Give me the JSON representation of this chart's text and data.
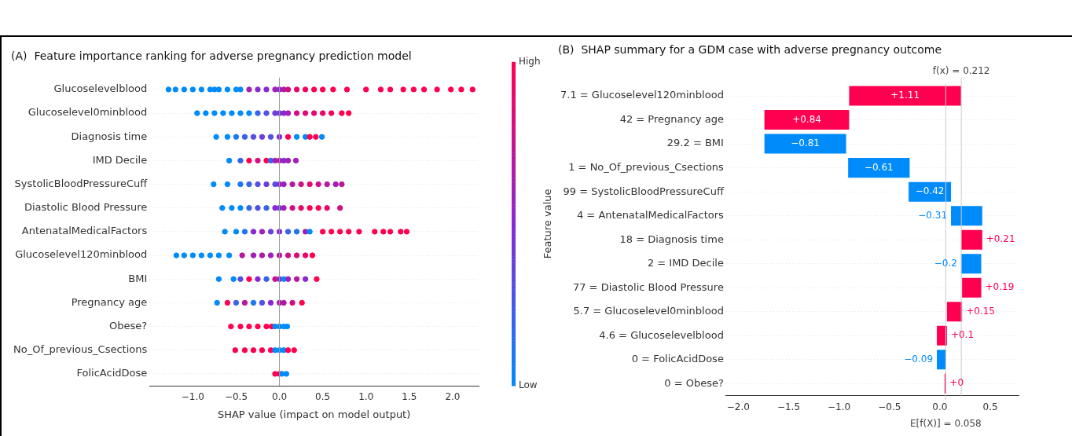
{
  "chart_data": [
    {
      "type": "scatter",
      "title": "(A)  Feature importance ranking for adverse pregnancy prediction model",
      "xlabel": "SHAP value (impact on model output)",
      "clabel": "Feature value",
      "orientation": "horizontal",
      "marker": "circle",
      "grid": "y",
      "categories": [
        "Glucoselevelblood",
        "Glucoselevel0minblood",
        "Diagnosis time",
        "IMD Decile",
        "SystolicBloodPressureCuff",
        "Diastolic Blood Pressure",
        "AntenatalMedicalFactors",
        "Glucoselevel120minblood",
        "BMI",
        "Pregnancy age",
        "Obese?",
        "No_Of_previous_Csections",
        "FolicAcidDose"
      ],
      "xlim": [
        -1.5,
        2.3
      ],
      "xticks": [
        {
          "value": -1,
          "label": "−1.0"
        },
        {
          "value": -0.5,
          "label": "−0.5"
        },
        {
          "value": 0,
          "label": "0.0"
        },
        {
          "value": 0.5,
          "label": "0.5"
        },
        {
          "value": 1,
          "label": "1.0"
        },
        {
          "value": 1.5,
          "label": "1.5"
        },
        {
          "value": 2,
          "label": "2.0"
        }
      ],
      "clim": [
        0,
        1
      ],
      "cticks": [
        {
          "value": 0,
          "label": "Low"
        },
        {
          "value": 1,
          "label": "High"
        }
      ],
      "ref_lines": [
        {
          "axis": "x",
          "value": 0,
          "label": null,
          "color": "#999999"
        }
      ],
      "series": [
        {
          "x": [
            "Glucoselevelblood",
            "Glucoselevelblood",
            "Glucoselevelblood",
            "Glucoselevelblood",
            "Glucoselevelblood",
            "Glucoselevelblood",
            "Glucoselevelblood",
            "Glucoselevelblood",
            "Glucoselevelblood",
            "Glucoselevelblood",
            "Glucoselevelblood",
            "Glucoselevelblood",
            "Glucoselevelblood",
            "Glucoselevelblood",
            "Glucoselevelblood",
            "Glucoselevelblood",
            "Glucoselevelblood",
            "Glucoselevelblood",
            "Glucoselevelblood",
            "Glucoselevelblood",
            "Glucoselevelblood",
            "Glucoselevelblood",
            "Glucoselevelblood",
            "Glucoselevelblood",
            "Glucoselevelblood",
            "Glucoselevelblood",
            "Glucoselevelblood",
            "Glucoselevelblood",
            "Glucoselevelblood",
            "Glucoselevelblood",
            "Glucoselevelblood",
            "Glucoselevelblood",
            "Glucoselevelblood",
            "Glucoselevelblood"
          ],
          "values": [
            -1.28,
            -1.2,
            -1.1,
            -1.0,
            -0.9,
            -0.8,
            -0.75,
            -0.7,
            -0.6,
            -0.5,
            -0.45,
            -0.35,
            -0.25,
            -0.15,
            -0.05,
            0,
            0.05,
            0.1,
            0.2,
            0.3,
            0.4,
            0.5,
            0.62,
            0.78,
            1.0,
            1.17,
            1.28,
            1.43,
            1.55,
            1.67,
            1.82,
            1.98,
            2.1,
            2.23
          ],
          "cvalues": [
            0,
            0,
            0,
            0,
            0,
            0,
            0,
            0,
            0,
            0,
            0,
            0.6,
            0.5,
            0.5,
            0.6,
            0.5,
            0.7,
            0.8,
            0.9,
            0.95,
            1,
            1,
            1,
            1,
            1,
            1,
            1,
            1,
            1,
            1,
            1,
            1,
            1,
            1
          ],
          "colors": [
            "#008bfb",
            "#008bfb",
            "#008bfb",
            "#008bfb",
            "#008bfb",
            "#008bfb",
            "#008bfb",
            "#008bfb",
            "#008bfb",
            "#008bfb",
            "#008bfb",
            "#a120b8",
            "#8a28d2",
            "#8a28d2",
            "#a120b8",
            "#8a28d2",
            "#b8189e",
            "#cf1085",
            "#e6086b",
            "#f2045e",
            "#ff0051",
            "#ff0051",
            "#ff0051",
            "#ff0051",
            "#ff0051",
            "#ff0051",
            "#ff0051",
            "#ff0051",
            "#ff0051",
            "#ff0051",
            "#ff0051",
            "#ff0051",
            "#ff0051",
            "#ff0051"
          ]
        },
        {
          "x": [
            "Glucoselevel0minblood",
            "Glucoselevel0minblood",
            "Glucoselevel0minblood",
            "Glucoselevel0minblood",
            "Glucoselevel0minblood",
            "Glucoselevel0minblood",
            "Glucoselevel0minblood",
            "Glucoselevel0minblood",
            "Glucoselevel0minblood",
            "Glucoselevel0minblood",
            "Glucoselevel0minblood",
            "Glucoselevel0minblood",
            "Glucoselevel0minblood",
            "Glucoselevel0minblood",
            "Glucoselevel0minblood",
            "Glucoselevel0minblood",
            "Glucoselevel0minblood",
            "Glucoselevel0minblood",
            "Glucoselevel0minblood",
            "Glucoselevel0minblood"
          ],
          "values": [
            -0.95,
            -0.85,
            -0.75,
            -0.65,
            -0.55,
            -0.45,
            -0.35,
            -0.25,
            -0.15,
            -0.05,
            0,
            0.05,
            0.1,
            0.2,
            0.3,
            0.4,
            0.5,
            0.6,
            0.72,
            0.8
          ],
          "cvalues": [
            0,
            0,
            0,
            0,
            0,
            0,
            0,
            0.2,
            0.3,
            0.4,
            0.4,
            0.5,
            0.6,
            0.8,
            0.85,
            0.9,
            0.9,
            0.95,
            1,
            1
          ],
          "colors": [
            "#008bfb",
            "#008bfb",
            "#008bfb",
            "#008bfb",
            "#008bfb",
            "#008bfb",
            "#008bfb",
            "#3764eb",
            "#5350e3",
            "#6e3cda",
            "#6e3cda",
            "#8a28d2",
            "#a120b8",
            "#cf1085",
            "#db0c78",
            "#e6086b",
            "#e6086b",
            "#f2045e",
            "#ff0051",
            "#ff0051"
          ]
        },
        {
          "x": [
            "Diagnosis time",
            "Diagnosis time",
            "Diagnosis time",
            "Diagnosis time",
            "Diagnosis time",
            "Diagnosis time",
            "Diagnosis time",
            "Diagnosis time",
            "Diagnosis time",
            "Diagnosis time",
            "Diagnosis time",
            "Diagnosis time",
            "Diagnosis time",
            "Diagnosis time",
            "Diagnosis time"
          ],
          "values": [
            -0.73,
            -0.6,
            -0.5,
            -0.4,
            -0.3,
            -0.2,
            -0.1,
            0,
            null,
            0.1,
            0.2,
            0.3,
            0.35,
            0.42,
            0.49
          ],
          "cvalues": [
            0,
            0,
            0.1,
            0.2,
            0.3,
            0.4,
            0.3,
            0.5,
            null,
            1,
            0,
            0,
            1,
            1,
            0
          ],
          "colors": [
            "#008bfb",
            "#008bfb",
            "#1c78f3",
            "#3764eb",
            "#5350e3",
            "#6e3cda",
            "#5350e3",
            "#8a28d2",
            null,
            "#ff0051",
            "#008bfb",
            "#008bfb",
            "#ff0051",
            "#ff0051",
            "#008bfb"
          ]
        },
        {
          "x": [
            "IMD Decile",
            "IMD Decile",
            "IMD Decile",
            "IMD Decile",
            "IMD Decile",
            "IMD Decile",
            "IMD Decile",
            "IMD Decile",
            "IMD Decile",
            "IMD Decile",
            "IMD Decile"
          ],
          "values": [
            -0.58,
            -0.45,
            -0.35,
            -0.25,
            -0.15,
            -0.1,
            -0.05,
            0,
            0.05,
            0.1,
            0.19
          ],
          "cvalues": [
            0,
            0.2,
            1,
            0.8,
            1,
            0.2,
            0.6,
            0.7,
            0.5,
            0.6,
            0.6
          ],
          "colors": [
            "#008bfb",
            "#3764eb",
            "#ff0051",
            "#cf1085",
            "#ff0051",
            "#3764eb",
            "#a120b8",
            "#b8189e",
            "#8a28d2",
            "#a120b8",
            "#a120b8"
          ]
        },
        {
          "x": [
            "SystolicBloodPressureCuff",
            "SystolicBloodPressureCuff",
            "SystolicBloodPressureCuff",
            "SystolicBloodPressureCuff",
            "SystolicBloodPressureCuff",
            "SystolicBloodPressureCuff",
            "SystolicBloodPressureCuff",
            "SystolicBloodPressureCuff",
            "SystolicBloodPressureCuff",
            "SystolicBloodPressureCuff",
            "SystolicBloodPressureCuff",
            "SystolicBloodPressureCuff",
            "SystolicBloodPressureCuff",
            "SystolicBloodPressureCuff",
            "SystolicBloodPressureCuff",
            "SystolicBloodPressureCuff"
          ],
          "values": [
            -0.76,
            -0.6,
            -0.45,
            -0.35,
            -0.25,
            -0.15,
            -0.05,
            0,
            0.05,
            0.15,
            0.25,
            0.35,
            0.45,
            0.55,
            0.65,
            0.72
          ],
          "cvalues": [
            0,
            0,
            0.1,
            0.2,
            0.3,
            0.4,
            0.3,
            0.5,
            0.6,
            0.7,
            0.8,
            0.9,
            0.8,
            0.7,
            0.6,
            0.7
          ],
          "colors": [
            "#008bfb",
            "#008bfb",
            "#1c78f3",
            "#3764eb",
            "#5350e3",
            "#6e3cda",
            "#5350e3",
            "#8a28d2",
            "#a120b8",
            "#b8189e",
            "#cf1085",
            "#e6086b",
            "#cf1085",
            "#b8189e",
            "#a120b8",
            "#b8189e"
          ]
        },
        {
          "x": [
            "Diastolic Blood Pressure",
            "Diastolic Blood Pressure",
            "Diastolic Blood Pressure",
            "Diastolic Blood Pressure",
            "Diastolic Blood Pressure",
            "Diastolic Blood Pressure",
            "Diastolic Blood Pressure",
            "Diastolic Blood Pressure",
            "Diastolic Blood Pressure",
            "Diastolic Blood Pressure",
            "Diastolic Blood Pressure",
            "Diastolic Blood Pressure",
            "Diastolic Blood Pressure",
            "Diastolic Blood Pressure",
            "Diastolic Blood Pressure"
          ],
          "values": [
            -0.66,
            -0.55,
            -0.45,
            -0.35,
            -0.25,
            -0.15,
            -0.05,
            0,
            0.05,
            0.15,
            0.25,
            0.35,
            0.45,
            0.55,
            0.7
          ],
          "cvalues": [
            0,
            0,
            0,
            0.2,
            0.3,
            0.2,
            0.5,
            0.4,
            0.6,
            0.8,
            0.9,
            1,
            1,
            0.9,
            0.8
          ],
          "colors": [
            "#008bfb",
            "#008bfb",
            "#008bfb",
            "#3764eb",
            "#5350e3",
            "#3764eb",
            "#8a28d2",
            "#6e3cda",
            "#a120b8",
            "#cf1085",
            "#e6086b",
            "#ff0051",
            "#ff0051",
            "#e6086b",
            "#cf1085"
          ]
        },
        {
          "x": [
            "AntenatalMedicalFactors",
            "AntenatalMedicalFactors",
            "AntenatalMedicalFactors",
            "AntenatalMedicalFactors",
            "AntenatalMedicalFactors",
            "AntenatalMedicalFactors",
            "AntenatalMedicalFactors",
            "AntenatalMedicalFactors",
            "AntenatalMedicalFactors",
            "AntenatalMedicalFactors",
            "AntenatalMedicalFactors",
            "AntenatalMedicalFactors",
            "AntenatalMedicalFactors",
            "AntenatalMedicalFactors",
            "AntenatalMedicalFactors",
            "AntenatalMedicalFactors",
            "AntenatalMedicalFactors",
            "AntenatalMedicalFactors",
            "AntenatalMedicalFactors",
            "AntenatalMedicalFactors",
            "AntenatalMedicalFactors"
          ],
          "values": [
            -0.63,
            -0.5,
            -0.4,
            -0.3,
            -0.2,
            -0.1,
            0,
            0.1,
            0.2,
            0.3,
            0.35,
            0.5,
            0.6,
            0.7,
            0.8,
            0.92,
            1.1,
            1.2,
            1.28,
            1.4,
            1.47
          ],
          "cvalues": [
            0,
            0,
            0.1,
            0.5,
            0.6,
            0.4,
            0.5,
            0.2,
            0.1,
            0.6,
            0,
            1,
            1,
            1,
            1,
            1,
            1,
            1,
            1,
            1,
            1
          ],
          "colors": [
            "#008bfb",
            "#008bfb",
            "#1c78f3",
            "#8a28d2",
            "#a120b8",
            "#6e3cda",
            "#8a28d2",
            "#3764eb",
            "#1c78f3",
            "#a120b8",
            "#008bfb",
            "#ff0051",
            "#ff0051",
            "#ff0051",
            "#ff0051",
            "#ff0051",
            "#ff0051",
            "#ff0051",
            "#ff0051",
            "#ff0051",
            "#ff0051"
          ]
        },
        {
          "x": [
            "Glucoselevel120minblood",
            "Glucoselevel120minblood",
            "Glucoselevel120minblood",
            "Glucoselevel120minblood",
            "Glucoselevel120minblood",
            "Glucoselevel120minblood",
            "Glucoselevel120minblood",
            "Glucoselevel120minblood",
            "Glucoselevel120minblood",
            "Glucoselevel120minblood",
            "Glucoselevel120minblood",
            "Glucoselevel120minblood",
            "Glucoselevel120minblood",
            "Glucoselevel120minblood",
            "Glucoselevel120minblood",
            "Glucoselevel120minblood"
          ],
          "values": [
            -1.19,
            -1.1,
            -1.0,
            -0.9,
            -0.8,
            -0.7,
            -0.58,
            -0.43,
            -0.3,
            -0.2,
            -0.1,
            0,
            0.1,
            0.2,
            0.3,
            0.38
          ],
          "cvalues": [
            0,
            0,
            0,
            0,
            0,
            0,
            0,
            0.7,
            0.6,
            0.65,
            0.6,
            0.7,
            0.8,
            0.85,
            0.9,
            1
          ],
          "colors": [
            "#008bfb",
            "#008bfb",
            "#008bfb",
            "#008bfb",
            "#008bfb",
            "#008bfb",
            "#008bfb",
            "#b8189e",
            "#a120b8",
            "#ad1cab",
            "#a120b8",
            "#b8189e",
            "#cf1085",
            "#db0c78",
            "#e6086b",
            "#ff0051"
          ]
        },
        {
          "x": [
            "BMI",
            "BMI",
            "BMI",
            "BMI",
            "BMI",
            "BMI",
            "BMI",
            "BMI",
            "BMI",
            "BMI",
            "BMI",
            "BMI",
            "BMI"
          ],
          "values": [
            -0.7,
            -0.53,
            -0.45,
            -0.35,
            -0.25,
            -0.15,
            -0.05,
            0,
            0.05,
            0.1,
            0.2,
            0.3,
            0.43
          ],
          "cvalues": [
            0,
            0,
            0.3,
            1,
            0.5,
            0.2,
            0.8,
            0.5,
            0,
            0.6,
            0.7,
            0.5,
            1
          ],
          "colors": [
            "#008bfb",
            "#008bfb",
            "#5350e3",
            "#ff0051",
            "#8a28d2",
            "#3764eb",
            "#cf1085",
            "#8a28d2",
            "#008bfb",
            "#a120b8",
            "#b8189e",
            "#8a28d2",
            "#ff0051"
          ]
        },
        {
          "x": [
            "Pregnancy age",
            "Pregnancy age",
            "Pregnancy age",
            "Pregnancy age",
            "Pregnancy age",
            "Pregnancy age",
            "Pregnancy age",
            "Pregnancy age",
            "Pregnancy age",
            "Pregnancy age",
            "Pregnancy age"
          ],
          "values": [
            -0.72,
            -0.6,
            -0.5,
            -0.4,
            -0.3,
            -0.2,
            -0.1,
            0,
            0.05,
            0.15,
            0.26
          ],
          "cvalues": [
            0,
            1,
            0.2,
            0.7,
            0.1,
            0.3,
            0.5,
            0.6,
            0.7,
            0.8,
            1
          ],
          "colors": [
            "#008bfb",
            "#ff0051",
            "#3764eb",
            "#b8189e",
            "#1c78f3",
            "#5350e3",
            "#8a28d2",
            "#a120b8",
            "#b8189e",
            "#cf1085",
            "#ff0051"
          ]
        },
        {
          "x": [
            "Obese?",
            "Obese?",
            "Obese?",
            "Obese?",
            "Obese?",
            "Obese?",
            "Obese?",
            "Obese?",
            "Obese?",
            "Obese?"
          ],
          "values": [
            -0.56,
            -0.45,
            -0.35,
            -0.25,
            -0.15,
            -0.09,
            -0.05,
            0,
            0.05,
            0.09
          ],
          "cvalues": [
            1,
            1,
            1,
            1,
            1,
            1,
            0,
            0,
            0,
            0
          ],
          "colors": [
            "#ff0051",
            "#ff0051",
            "#ff0051",
            "#ff0051",
            "#ff0051",
            "#ff0051",
            "#008bfb",
            "#008bfb",
            "#008bfb",
            "#008bfb"
          ]
        },
        {
          "x": [
            "No_Of_previous_Csections",
            "No_Of_previous_Csections",
            "No_Of_previous_Csections",
            "No_Of_previous_Csections",
            "No_Of_previous_Csections",
            "No_Of_previous_Csections",
            "No_Of_previous_Csections",
            "No_Of_previous_Csections",
            "No_Of_previous_Csections",
            "No_Of_previous_Csections"
          ],
          "values": [
            -0.51,
            -0.4,
            -0.3,
            -0.2,
            -0.1,
            -0.05,
            0,
            0.05,
            0.1,
            0.17
          ],
          "cvalues": [
            1,
            1,
            1,
            1,
            1,
            0,
            0,
            0,
            1,
            1
          ],
          "colors": [
            "#ff0051",
            "#ff0051",
            "#ff0051",
            "#ff0051",
            "#ff0051",
            "#008bfb",
            "#008bfb",
            "#008bfb",
            "#ff0051",
            "#ff0051"
          ]
        },
        {
          "x": [
            "FolicAcidDose",
            "FolicAcidDose",
            "FolicAcidDose",
            "FolicAcidDose",
            "FolicAcidDose"
          ],
          "values": [
            -0.05,
            null,
            0,
            0.03,
            0.08
          ],
          "cvalues": [
            1,
            null,
            1,
            0,
            0
          ],
          "colors": [
            "#ff0051",
            null,
            "#ff0051",
            "#008bfb",
            "#008bfb"
          ]
        }
      ]
    },
    {
      "type": "bar",
      "title": "(B)  SHAP summary for a GDM case with adverse pregnancy outcome",
      "orientation": "horizontal",
      "grid": "y",
      "categories": [
        "7.1 = Glucoselevel120minblood",
        "42 = Pregnancy age",
        "29.2 = BMI",
        "1 = No_Of_previous_Csections",
        "99 = SystolicBloodPressureCuff",
        "4 = AntenatalMedicalFactors",
        "18 = Diagnosis time",
        "2 = IMD Decile",
        "77 = Diastolic Blood Pressure",
        "5.7 = Glucoselevel0minblood",
        "4.6 = Glucoselevelblood",
        "0 = FolicAcidDose",
        "0 = Obese?"
      ],
      "values": [
        1.11,
        0.84,
        -0.81,
        -0.61,
        -0.42,
        -0.31,
        0.21,
        -0.2,
        0.19,
        0.15,
        0.1,
        -0.09,
        0
      ],
      "base": [
        -0.9,
        -1.74,
        -0.93,
        -0.3,
        0.11,
        0.42,
        0.21,
        0.41,
        0.22,
        0.07,
        -0.03,
        0.06,
        0.058
      ],
      "colors": [
        "#ff0051",
        "#ff0051",
        "#008bfb",
        "#008bfb",
        "#008bfb",
        "#008bfb",
        "#ff0051",
        "#008bfb",
        "#ff0051",
        "#ff0051",
        "#ff0051",
        "#008bfb",
        "#ff0051"
      ],
      "value_labels": [
        "+1.11",
        "+0.84",
        "−0.81",
        "−0.61",
        "−0.42",
        "−0.31",
        "+0.21",
        "−0.2",
        "+0.19",
        "+0.15",
        "+0.1",
        "−0.09",
        "+0"
      ],
      "xlim": [
        -2.12,
        0.78
      ],
      "xticks": [
        {
          "value": -2,
          "label": "−2.0"
        },
        {
          "value": -1.5,
          "label": "−1.5"
        },
        {
          "value": -1,
          "label": "−1.0"
        },
        {
          "value": -0.5,
          "label": "−0.5"
        },
        {
          "value": 0,
          "label": "0.0"
        },
        {
          "value": 0.5,
          "label": "0.5"
        }
      ],
      "ref_lines": [
        {
          "axis": "x",
          "value": 0.212,
          "label": "f(x) = 0.212",
          "color": "#cccccc"
        },
        {
          "axis": "x",
          "value": 0.058,
          "label": "E[f(X)] = 0.058",
          "color": "#cccccc"
        }
      ]
    }
  ]
}
